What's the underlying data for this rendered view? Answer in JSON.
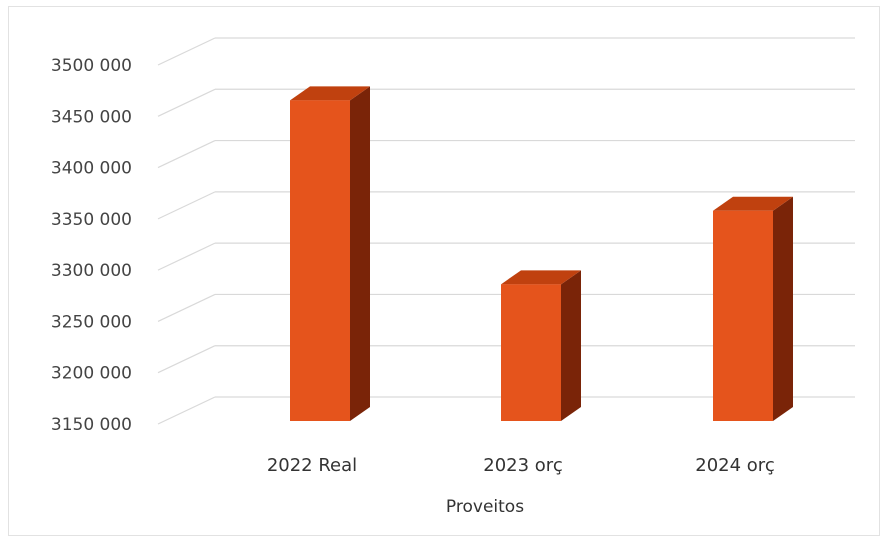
{
  "chart_data": {
    "type": "bar",
    "style": "3d-column",
    "categories": [
      "2022 Real",
      "2023 orç",
      "2024 orç"
    ],
    "series": [
      {
        "values": [
          3455000,
          3280000,
          3350000
        ]
      }
    ],
    "xlabel": "Proveitos",
    "ylabel": "",
    "ylim": [
      3150000,
      3500000
    ],
    "yticks": [
      3150000,
      3200000,
      3250000,
      3300000,
      3350000,
      3400000,
      3450000,
      3500000
    ],
    "ytick_labels": [
      "3150 000",
      "3200 000",
      "3250 000",
      "3300 000",
      "3350 000",
      "3400 000",
      "3450 000",
      "3500 000"
    ],
    "grid": true,
    "legend": "none",
    "colors": {
      "bar_front": "#e5541c",
      "bar_top": "#c0410f",
      "bar_side": "#7a2408",
      "gridline": "#d9d9d9"
    }
  }
}
